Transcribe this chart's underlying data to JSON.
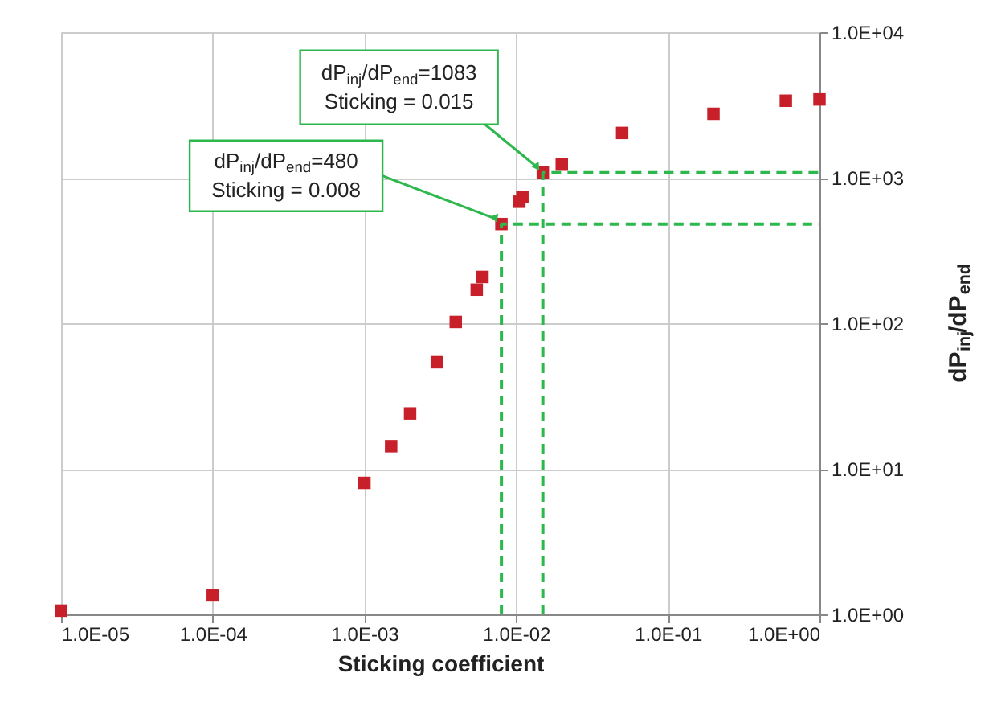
{
  "chart_data": {
    "type": "scatter",
    "xlabel": "Sticking coefficient",
    "ylabel": "dP$_{inj}$/dP$_{end}$",
    "log": "xy",
    "grid": true,
    "xlim": [
      1e-05,
      1
    ],
    "ylim": [
      1,
      10000
    ],
    "xticks": [
      {
        "value": 1e-05,
        "label": "1.0E-05"
      },
      {
        "value": 0.0001,
        "label": "1.0E-04"
      },
      {
        "value": 0.001,
        "label": "1.0E-03"
      },
      {
        "value": 0.01,
        "label": "1.0E-02"
      },
      {
        "value": 0.1,
        "label": "1.0E-01"
      },
      {
        "value": 1,
        "label": "1.0E+00"
      }
    ],
    "yticks": [
      {
        "value": 1,
        "label": "1.0E+00"
      },
      {
        "value": 10,
        "label": "1.0E+01"
      },
      {
        "value": 100,
        "label": "1.0E+02"
      },
      {
        "value": 1000,
        "label": "1.0E+03"
      },
      {
        "value": 10000,
        "label": "1.0E+04"
      }
    ],
    "series": [
      {
        "type": "scatter",
        "marker": "square",
        "color": "#c8202a",
        "x": [
          1e-05,
          0.0001,
          0.001,
          0.0015,
          0.002,
          0.003,
          0.004,
          0.0055,
          0.006,
          0.008,
          0.0105,
          0.011,
          0.015,
          0.02,
          0.05,
          0.2,
          0.6,
          1
        ],
        "values": [
          1.06,
          1.35,
          8.0,
          14.3,
          24,
          54,
          102,
          170,
          208,
          480,
          684,
          735,
          1083,
          1230,
          2030,
          2750,
          3380,
          3450
        ]
      },
      {
        "type": "line",
        "line_style": "dashed",
        "color": "#2db84d",
        "x": [
          0.008,
          0.008,
          1
        ],
        "values": [
          1,
          480,
          480
        ]
      },
      {
        "type": "line",
        "line_style": "dashed",
        "color": "#2db84d",
        "x": [
          0.015,
          0.015,
          1
        ],
        "values": [
          1,
          1083,
          1083
        ]
      }
    ],
    "annotations": [
      {
        "text": "dP$_{inj}$/dP$_{end}$=480\nSticking = 0.008",
        "x": 0.008,
        "y": 480
      },
      {
        "text": "dP$_{inj}$/dP$_{end}$=1083\nSticking = 0.015",
        "x": 0.015,
        "y": 1083
      }
    ]
  }
}
